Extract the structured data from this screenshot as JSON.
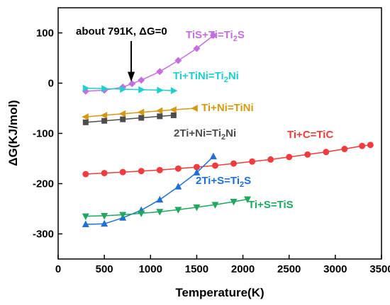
{
  "chart_data": {
    "type": "line",
    "xlabel": "Temperature(K)",
    "ylabel": "ΔG(KJ/mol)",
    "xlim": [
      0,
      3500
    ],
    "ylim": [
      -350,
      150
    ],
    "xticks": [
      0,
      500,
      1000,
      1500,
      2000,
      2500,
      3000,
      3500
    ],
    "yticks": [
      -300,
      -200,
      -100,
      0,
      100
    ],
    "grid": false,
    "series": [
      {
        "name": "TiS+Ti=Ti2S",
        "label_main": "TiS+Ti=Ti",
        "label_sub": "2",
        "label_tail": "S",
        "color": "#c46ee0",
        "marker": "diamond",
        "x": [
          298,
          500,
          700,
          800,
          900,
          1100,
          1300,
          1500,
          1680
        ],
        "y": [
          -16,
          -14,
          -8,
          -1,
          6,
          23,
          45,
          69,
          95
        ]
      },
      {
        "name": "Ti+TiNi=Ti2Ni",
        "label_main": "Ti+TiNi=Ti",
        "label_sub": "2",
        "label_tail": "Ni",
        "color": "#1ecfcf",
        "marker": "triangle-right",
        "x": [
          298,
          500,
          700,
          900,
          1100,
          1250
        ],
        "y": [
          -10,
          -11,
          -12,
          -13,
          -14,
          -15
        ]
      },
      {
        "name": "Ti+Ni=TiNi",
        "label_main": "Ti+Ni=TiNi",
        "label_sub": "",
        "label_tail": "",
        "color": "#d49a10",
        "marker": "triangle-left",
        "x": [
          298,
          500,
          700,
          900,
          1100,
          1250,
          1480
        ],
        "y": [
          -67,
          -64,
          -61,
          -58,
          -55,
          -53,
          -50
        ]
      },
      {
        "name": "2Ti+Ni=Ti2Ni",
        "label_main": "2Ti+Ni=Ti",
        "label_sub": "2",
        "label_tail": "Ni",
        "color": "#4d4d4d",
        "marker": "square",
        "x": [
          298,
          500,
          700,
          900,
          1100,
          1250
        ],
        "y": [
          -78,
          -75,
          -72,
          -69,
          -66,
          -64
        ]
      },
      {
        "name": "Ti+C=TiC",
        "label_main": "Ti+C=TiC",
        "label_sub": "",
        "label_tail": "",
        "color": "#f03c3c",
        "marker": "circle",
        "x": [
          298,
          500,
          700,
          900,
          1100,
          1300,
          1500,
          1700,
          1900,
          2100,
          2300,
          2500,
          2700,
          2900,
          3100,
          3290,
          3380
        ],
        "y": [
          -181,
          -179,
          -177,
          -175,
          -173,
          -170,
          -167,
          -164,
          -160,
          -156,
          -152,
          -147,
          -142,
          -137,
          -131,
          -125,
          -123
        ]
      },
      {
        "name": "2Ti+S=Ti2S",
        "label_main": "2Ti+S=Ti",
        "label_sub": "2",
        "label_tail": "S",
        "color": "#1f6fd6",
        "marker": "triangle-up",
        "x": [
          298,
          500,
          700,
          900,
          1100,
          1300,
          1500,
          1680
        ],
        "y": [
          -281,
          -280,
          -268,
          -253,
          -232,
          -206,
          -178,
          -146
        ]
      },
      {
        "name": "Ti+S=TiS",
        "label_main": "Ti+S=TiS",
        "label_sub": "",
        "label_tail": "",
        "color": "#20a860",
        "marker": "triangle-down",
        "x": [
          298,
          500,
          700,
          900,
          1100,
          1300,
          1500,
          1700,
          1900,
          2050
        ],
        "y": [
          -265,
          -264,
          -262,
          -259,
          -256,
          -252,
          -247,
          -242,
          -236,
          -231
        ]
      }
    ],
    "annotation": {
      "text": "about 791K, ΔG=0",
      "arrow_x": 791,
      "arrow_y": 0
    }
  }
}
